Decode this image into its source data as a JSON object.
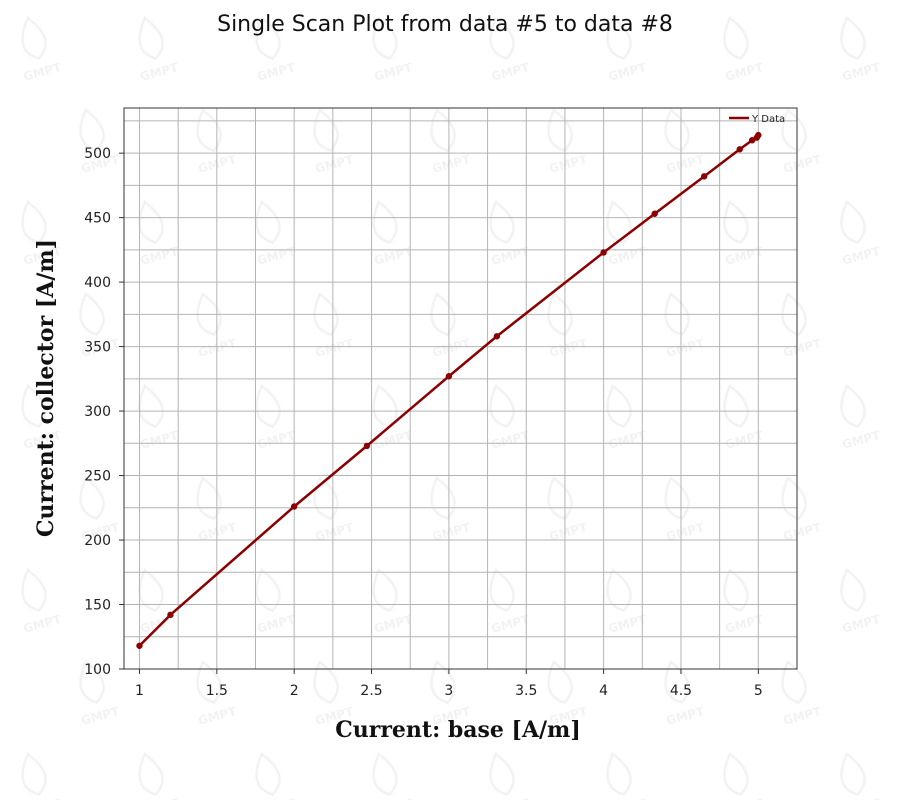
{
  "chart_data": {
    "type": "line",
    "title": "Single Scan Plot from data #5 to data #8",
    "xlabel": "Current: base [A/m]",
    "ylabel": "Current: collector [A/m]",
    "xlim": [
      0.9,
      5.25
    ],
    "ylim": [
      100,
      535
    ],
    "x_ticks": [
      "1",
      "1.5",
      "2",
      "2.5",
      "3",
      "3.5",
      "4",
      "4.5",
      "5"
    ],
    "y_ticks": [
      "100",
      "150",
      "200",
      "250",
      "300",
      "350",
      "400",
      "450",
      "500"
    ],
    "grid": true,
    "legend_position": "top-right",
    "series": [
      {
        "name": "Y Data",
        "color": "#8b0000",
        "x": [
          1.0,
          1.2,
          2.0,
          2.47,
          3.0,
          3.31,
          4.0,
          4.33,
          4.65,
          4.88,
          4.96,
          4.99,
          5.0
        ],
        "y": [
          118,
          142,
          226,
          273,
          327,
          358,
          423,
          453,
          482,
          503,
          510,
          512,
          514
        ]
      }
    ]
  },
  "watermark": "GMPT"
}
